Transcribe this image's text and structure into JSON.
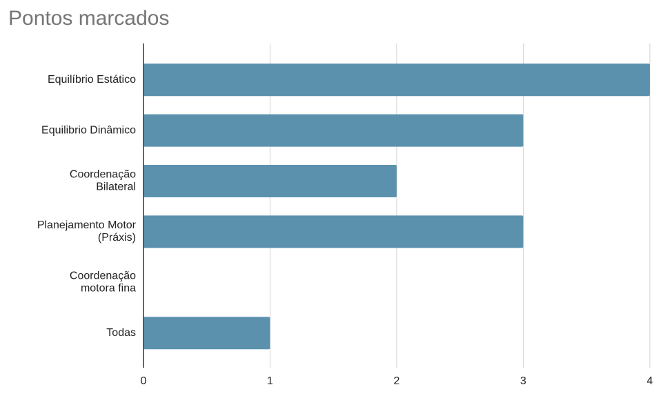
{
  "chart_data": {
    "type": "bar",
    "orientation": "horizontal",
    "title": "Pontos marcados",
    "categories": [
      "Equilíbrio Estático",
      "Equilibrio Dinâmico",
      "Coordenação\nBilateral",
      "Planejamento Motor\n(Práxis)",
      "Coordenação\nmotora fina",
      "Todas"
    ],
    "values": [
      4,
      3,
      2,
      3,
      0,
      1
    ],
    "color": "#5b91ad",
    "xlim": [
      0,
      4
    ],
    "xticks": [
      0,
      1,
      2,
      3,
      4
    ],
    "grid": true
  }
}
